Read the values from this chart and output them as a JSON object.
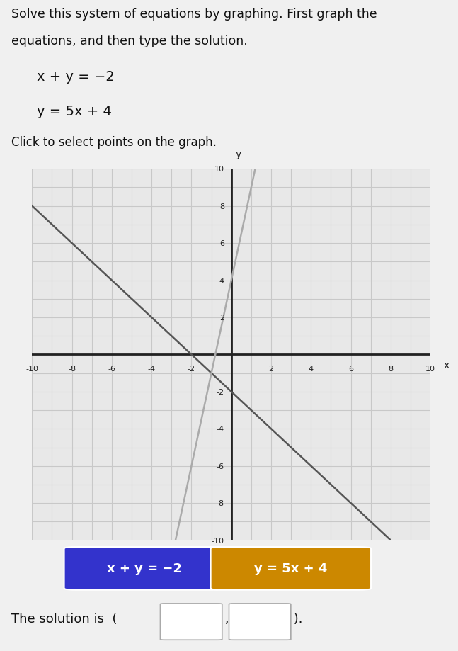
{
  "title_line1": "Solve this system of equations by graphing. First graph the",
  "title_line2": "equations, and then type the solution.",
  "eq1_display": "x + y = −2",
  "eq2_display": "y = 5x + 4",
  "instruction": "Click to select points on the graph.",
  "xlim": [
    -10,
    10
  ],
  "ylim": [
    -10,
    10
  ],
  "page_bg": "#f0f0f0",
  "graph_bg": "#e8e8e8",
  "grid_color": "#c8c8c8",
  "axis_color": "#222222",
  "line1_color": "#555555",
  "line2_color": "#aaaaaa",
  "btn1_bg": "#3333cc",
  "btn2_bg": "#cc8800",
  "btn_text_color": "#ffffff",
  "text_color": "#111111",
  "box_bg": "#ffffff",
  "box_edge": "#aaaaaa"
}
